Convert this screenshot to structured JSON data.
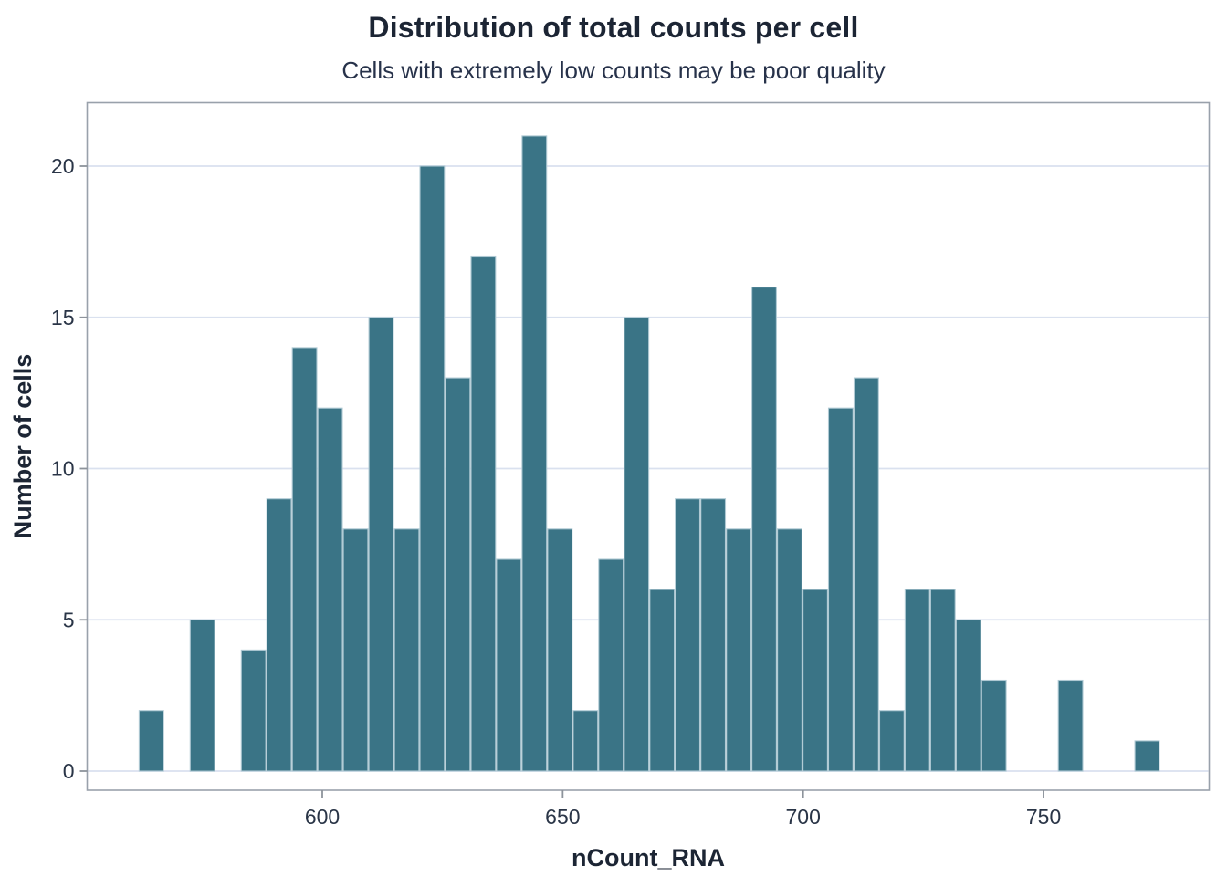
{
  "title": "Distribution of total counts per cell",
  "subtitle": "Cells with extremely low counts may be poor quality",
  "chart_data": {
    "type": "bar",
    "subtype": "histogram",
    "title": "Distribution of total counts per cell",
    "subtitle": "Cells with extremely low counts may be poor quality",
    "xlabel": "nCount_RNA",
    "ylabel": "Number of cells",
    "bin_start": 561.8,
    "bin_width": 5.31,
    "counts": [
      2,
      0,
      5,
      0,
      4,
      9,
      14,
      12,
      8,
      15,
      8,
      20,
      13,
      17,
      7,
      21,
      8,
      2,
      7,
      15,
      6,
      9,
      9,
      8,
      16,
      8,
      6,
      12,
      13,
      2,
      6,
      6,
      5,
      3,
      0,
      0,
      3,
      0,
      0,
      1
    ],
    "xticks": [
      600,
      650,
      700,
      750
    ],
    "yticks": [
      0,
      5,
      10,
      15,
      20
    ],
    "xlim": [
      551,
      784
    ],
    "ylim": [
      0,
      22
    ],
    "grid": "horizontal-major-only",
    "legend": "none",
    "colors": {
      "bar_fill": "#3A7486",
      "bar_stroke": "#AFC9D3",
      "grid_line": "#DAE1EF",
      "panel_border": "#99A1AB",
      "tick_mark": "#8D939B",
      "title_text": "#1C2534",
      "subtitle_text": "#27324A",
      "axis_text": "#2A3547"
    }
  }
}
